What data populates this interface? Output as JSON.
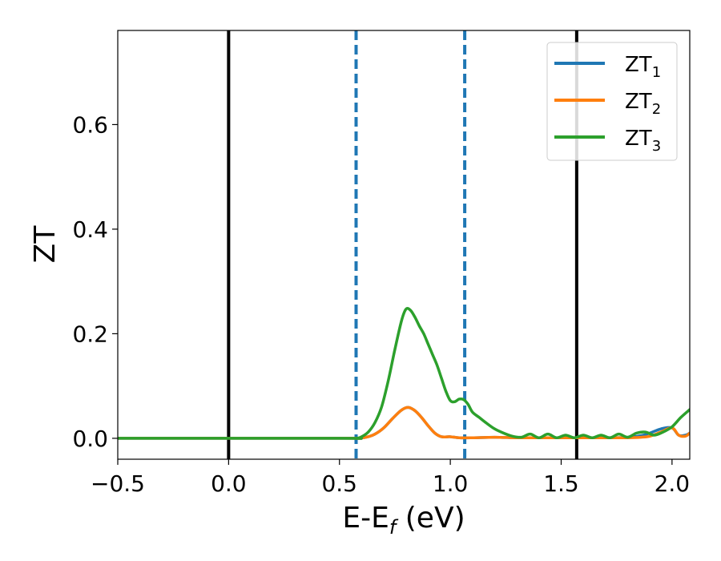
{
  "chart_data": {
    "type": "line",
    "xlabel": "E-E",
    "xlabel_sub": "f",
    "xlabel_unit": " (eV)",
    "ylabel": "ZT",
    "xlim": [
      -0.5,
      2.08
    ],
    "ylim": [
      -0.04,
      0.78
    ],
    "grid": false,
    "legend_position": "top-right",
    "x_ticks": [
      {
        "value": -0.5,
        "label": "−0.5"
      },
      {
        "value": 0.0,
        "label": "0.0"
      },
      {
        "value": 0.5,
        "label": "0.5"
      },
      {
        "value": 1.0,
        "label": "1.0"
      },
      {
        "value": 1.5,
        "label": "1.5"
      },
      {
        "value": 2.0,
        "label": "2.0"
      }
    ],
    "y_ticks": [
      {
        "value": 0.0,
        "label": "0.0"
      },
      {
        "value": 0.2,
        "label": "0.2"
      },
      {
        "value": 0.4,
        "label": "0.4"
      },
      {
        "value": 0.6,
        "label": "0.6"
      }
    ],
    "vlines": [
      {
        "x": 0.0,
        "style": "solid",
        "color": "#000000"
      },
      {
        "x": 1.57,
        "style": "solid",
        "color": "#000000"
      },
      {
        "x": 0.575,
        "style": "dashed",
        "color": "#1f77b4"
      },
      {
        "x": 1.065,
        "style": "dashed",
        "color": "#1f77b4"
      }
    ],
    "series": [
      {
        "name": "ZT",
        "sub": "1",
        "color": "#1f77b4",
        "x": [
          -0.5,
          0.5,
          0.575,
          0.62,
          0.66,
          0.7,
          0.74,
          0.78,
          0.81,
          0.84,
          0.87,
          0.9,
          0.93,
          0.96,
          1.0,
          1.04,
          1.1,
          1.2,
          1.3,
          1.4,
          1.5,
          1.6,
          1.7,
          1.8,
          1.86,
          1.9,
          1.95,
          2.0,
          2.03,
          2.06,
          2.08
        ],
        "y": [
          0,
          0,
          0,
          0.002,
          0.008,
          0.02,
          0.038,
          0.054,
          0.059,
          0.053,
          0.04,
          0.024,
          0.01,
          0.003,
          0.003,
          0.001,
          0.001,
          0.002,
          0.001,
          0.001,
          0.001,
          0.001,
          0.001,
          0.002,
          0.005,
          0.01,
          0.018,
          0.02,
          0.006,
          0.006,
          0.01
        ]
      },
      {
        "name": "ZT",
        "sub": "2",
        "color": "#ff7f0e",
        "x": [
          -0.5,
          0.5,
          0.575,
          0.62,
          0.66,
          0.7,
          0.74,
          0.78,
          0.81,
          0.84,
          0.87,
          0.9,
          0.93,
          0.96,
          1.0,
          1.04,
          1.1,
          1.2,
          1.3,
          1.4,
          1.5,
          1.6,
          1.7,
          1.8,
          1.86,
          1.9,
          1.95,
          2.0,
          2.03,
          2.06,
          2.08
        ],
        "y": [
          0,
          0,
          0,
          0.002,
          0.008,
          0.02,
          0.038,
          0.054,
          0.059,
          0.053,
          0.04,
          0.024,
          0.01,
          0.003,
          0.003,
          0.001,
          0.001,
          0.002,
          0.001,
          0.001,
          0.001,
          0.001,
          0.001,
          0.001,
          0.002,
          0.004,
          0.012,
          0.02,
          0.006,
          0.004,
          0.01
        ]
      },
      {
        "name": "ZT",
        "sub": "3",
        "color": "#2ca02c",
        "x": [
          -0.5,
          0.5,
          0.575,
          0.6,
          0.63,
          0.66,
          0.69,
          0.72,
          0.75,
          0.78,
          0.8,
          0.82,
          0.84,
          0.86,
          0.88,
          0.9,
          0.92,
          0.94,
          0.96,
          0.98,
          1.0,
          1.02,
          1.04,
          1.06,
          1.08,
          1.1,
          1.13,
          1.16,
          1.2,
          1.24,
          1.28,
          1.32,
          1.36,
          1.4,
          1.44,
          1.48,
          1.52,
          1.56,
          1.6,
          1.64,
          1.68,
          1.72,
          1.76,
          1.8,
          1.84,
          1.88,
          1.92,
          1.96,
          2.0,
          2.04,
          2.08
        ],
        "y": [
          0,
          0,
          0,
          0.003,
          0.012,
          0.03,
          0.06,
          0.11,
          0.17,
          0.225,
          0.247,
          0.245,
          0.232,
          0.215,
          0.2,
          0.18,
          0.16,
          0.14,
          0.115,
          0.09,
          0.072,
          0.07,
          0.075,
          0.074,
          0.065,
          0.05,
          0.04,
          0.03,
          0.018,
          0.01,
          0.004,
          0.002,
          0.008,
          0.001,
          0.008,
          0.001,
          0.006,
          0.001,
          0.006,
          0.001,
          0.006,
          0.001,
          0.008,
          0.002,
          0.01,
          0.012,
          0.006,
          0.012,
          0.022,
          0.04,
          0.055
        ]
      }
    ]
  }
}
